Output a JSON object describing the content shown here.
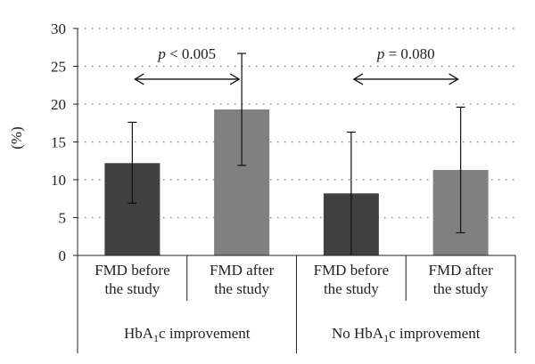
{
  "chart_data": {
    "type": "bar",
    "ylabel": "(%)",
    "ylim": [
      0,
      30
    ],
    "yticks": [
      "0",
      "5",
      "10",
      "15",
      "20",
      "25",
      "30"
    ],
    "grid": "horizontal dotted",
    "categories": [
      "FMD before the study",
      "FMD after the study",
      "FMD before the study",
      "FMD after the study"
    ],
    "category_lines": [
      [
        "FMD before",
        "the study"
      ],
      [
        "FMD after",
        "the study"
      ],
      [
        "FMD before",
        "the study"
      ],
      [
        "FMD after",
        "the study"
      ]
    ],
    "groups": [
      {
        "label_pre": "HbA",
        "label_sub": "1",
        "label_post": "c improvement"
      },
      {
        "label_pre": "No HbA",
        "label_sub": "1",
        "label_post": "c improvement"
      }
    ],
    "values": [
      12.2,
      19.3,
      8.2,
      11.3
    ],
    "error_low": [
      6.9,
      11.9,
      0,
      3.0
    ],
    "error_high": [
      17.6,
      26.7,
      16.3,
      19.6
    ],
    "bar_colors": [
      "#404040",
      "#808080",
      "#404040",
      "#808080"
    ],
    "comparisons": [
      {
        "from": 0,
        "to": 1,
        "y": 23.3,
        "label_p": "p",
        "label_rest": " < 0.005"
      },
      {
        "from": 2,
        "to": 3,
        "y": 23.3,
        "label_p": "p",
        "label_rest": " = 0.080"
      }
    ]
  }
}
